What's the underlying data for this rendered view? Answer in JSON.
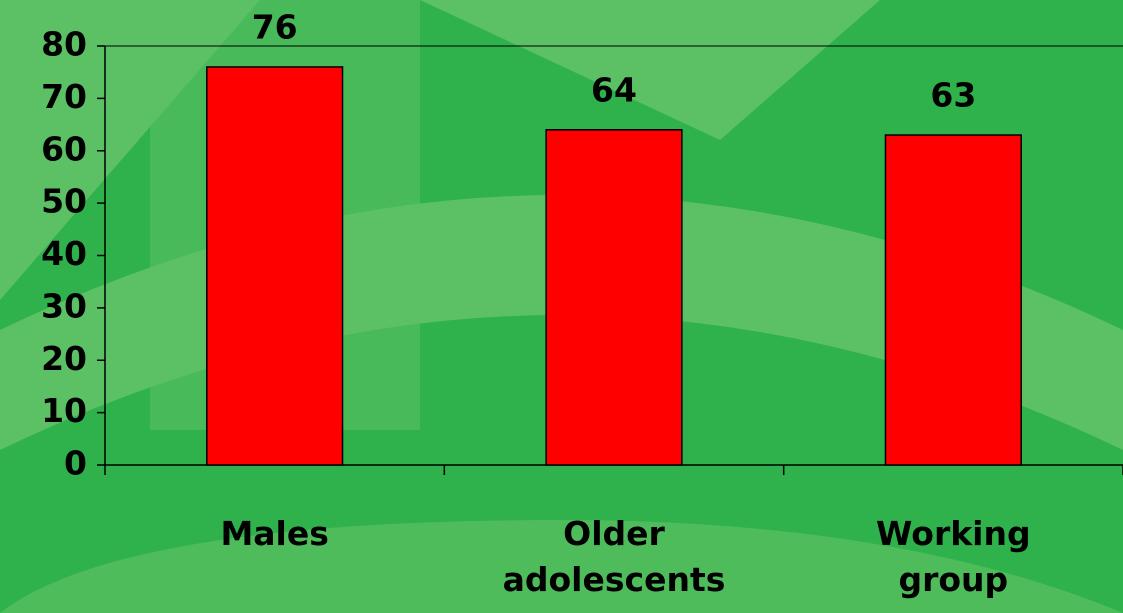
{
  "chart_data": {
    "type": "bar",
    "categories": [
      "Males",
      "Older adolescents",
      "Working group"
    ],
    "values": [
      76,
      64,
      63
    ],
    "color": "#ff0000",
    "ylim": [
      0,
      80
    ],
    "yticks": [
      0,
      10,
      20,
      30,
      40,
      50,
      60,
      70,
      80
    ]
  }
}
